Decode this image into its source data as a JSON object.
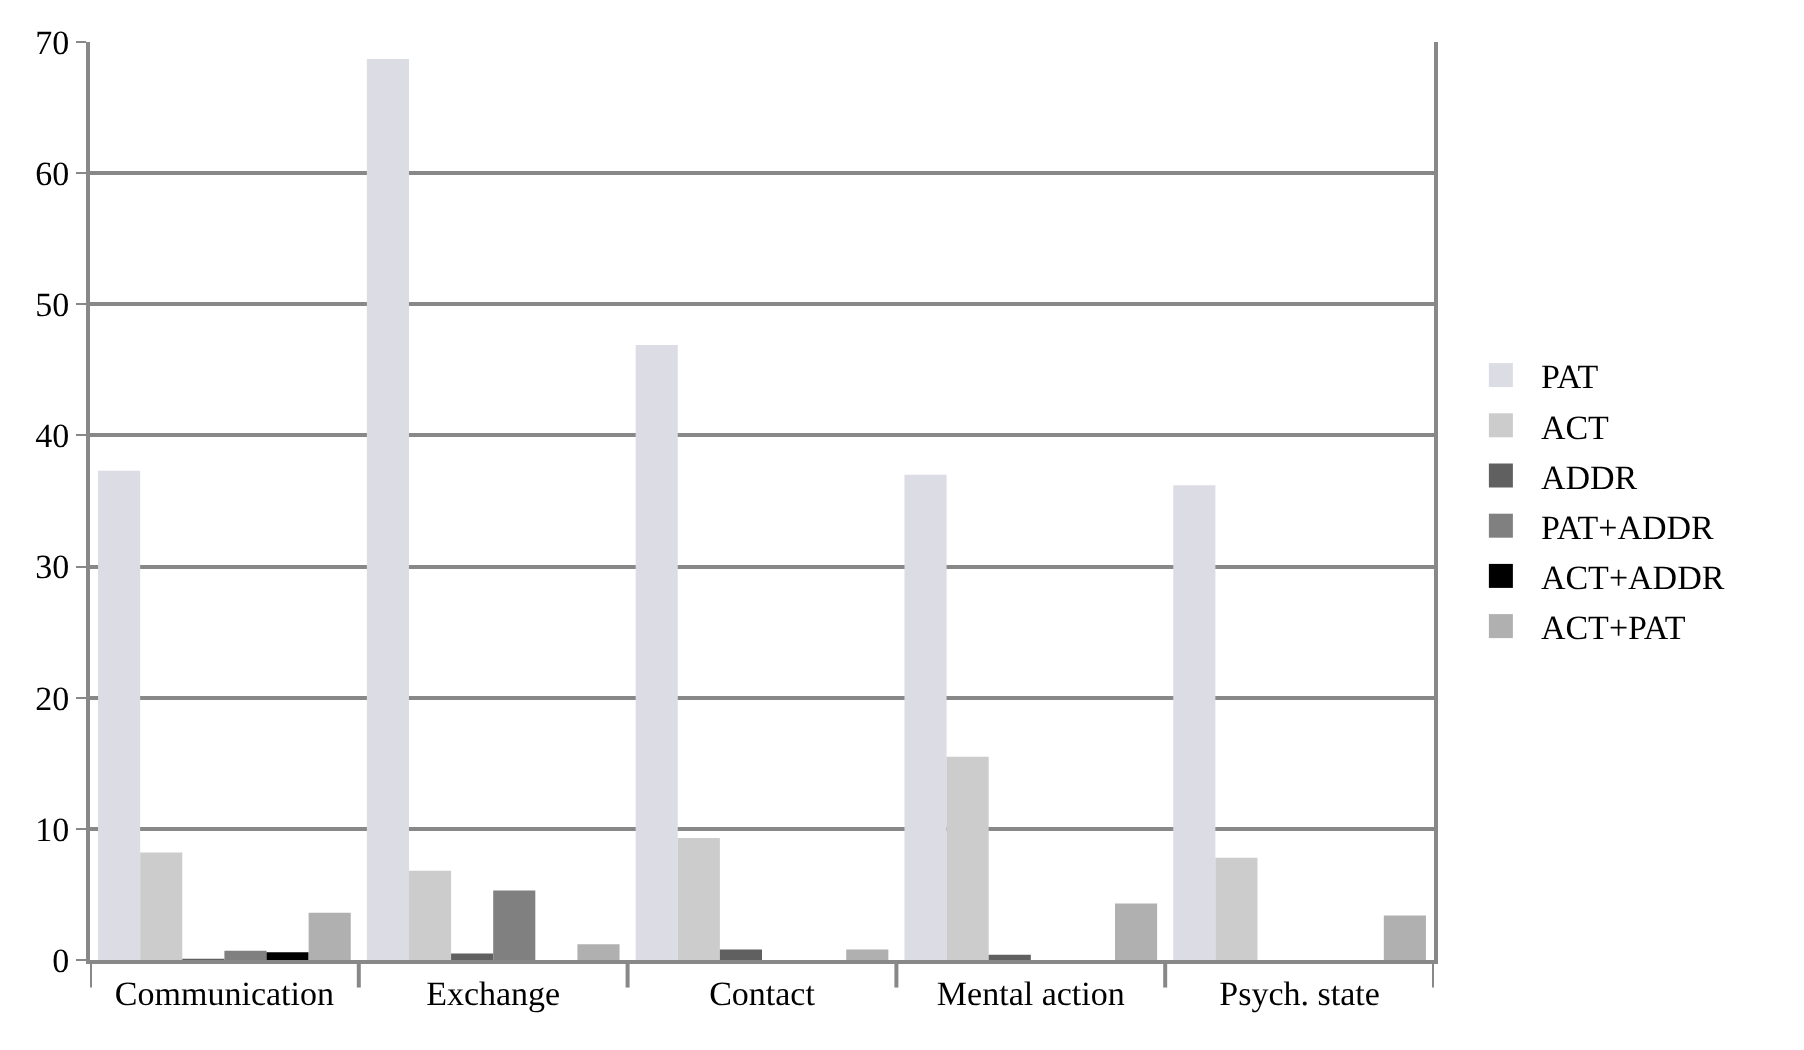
{
  "chart_data": {
    "type": "bar",
    "categories": [
      "Communication",
      "Exchange",
      "Contact",
      "Mental action",
      "Psych. state"
    ],
    "series": [
      {
        "name": "PAT",
        "color": "#dcdce4",
        "values": [
          37.3,
          68.7,
          46.9,
          37,
          36.2
        ]
      },
      {
        "name": "ACT",
        "color": "#cccccc",
        "values": [
          8.2,
          6.8,
          9.3,
          15.5,
          7.8
        ]
      },
      {
        "name": "ADDR",
        "color": "#606060",
        "values": [
          0.1,
          0.5,
          0.8,
          0.4,
          0
        ]
      },
      {
        "name": "PAT+ADDR",
        "color": "#808080",
        "values": [
          0.7,
          5.3,
          0,
          0,
          0
        ]
      },
      {
        "name": "ACT+ADDR",
        "color": "#000000",
        "values": [
          0.6,
          0,
          0,
          0,
          0
        ]
      },
      {
        "name": "ACT+PAT",
        "color": "#b0b0b0",
        "values": [
          3.6,
          1.2,
          0.8,
          4.3,
          3.4
        ]
      }
    ],
    "ylim": [
      0,
      70
    ],
    "yticks": [
      0,
      10,
      20,
      30,
      40,
      50,
      60,
      70
    ],
    "grid": "y",
    "legend": "right"
  }
}
